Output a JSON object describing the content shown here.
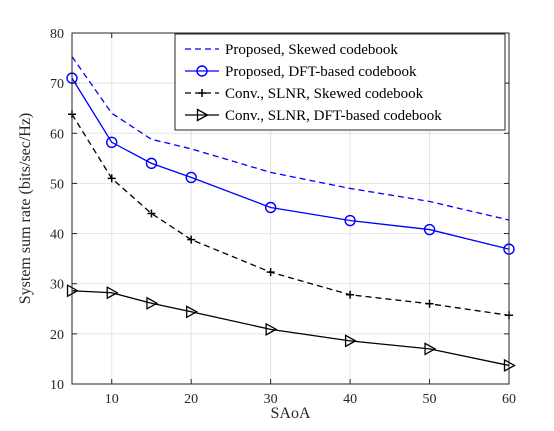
{
  "chart_data": {
    "type": "line",
    "title": "",
    "xlabel": "SAoA",
    "ylabel": "System sum rate (bits/sec/Hz)",
    "xlim": [
      5,
      60
    ],
    "ylim": [
      10,
      80
    ],
    "xticks": [
      10,
      20,
      30,
      40,
      50,
      60
    ],
    "yticks": [
      10,
      20,
      30,
      40,
      50,
      60,
      70,
      80
    ],
    "grid": true,
    "legend_position": "top-right",
    "x": [
      5,
      10,
      15,
      20,
      30,
      40,
      50,
      60
    ],
    "series": [
      {
        "name": "Proposed, Skewed codebook",
        "color": "#0000ff",
        "line": "dashed",
        "marker": "none",
        "values": [
          75.3,
          64.0,
          58.8,
          56.9,
          52.2,
          49.0,
          46.4,
          42.7
        ]
      },
      {
        "name": "Proposed, DFT-based codebook",
        "color": "#0000ff",
        "line": "solid",
        "marker": "circle",
        "values": [
          71.0,
          58.2,
          54.0,
          51.2,
          45.2,
          42.6,
          40.8,
          36.9
        ]
      },
      {
        "name": "Conv., SLNR, Skewed codebook",
        "color": "#000000",
        "line": "dashed",
        "marker": "plus",
        "values": [
          63.8,
          51.0,
          44.0,
          38.8,
          32.3,
          27.8,
          26.0,
          23.7
        ]
      },
      {
        "name": "Conv., SLNR, DFT-based codebook",
        "color": "#000000",
        "line": "solid",
        "marker": "triangle-right",
        "values": [
          28.6,
          28.2,
          26.1,
          24.4,
          20.9,
          18.6,
          17.0,
          13.7
        ]
      }
    ]
  }
}
